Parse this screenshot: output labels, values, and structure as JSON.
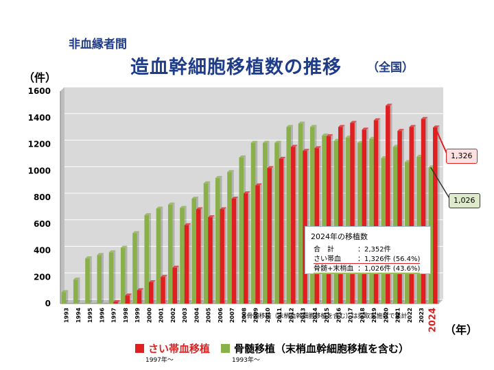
{
  "title": {
    "line1": "非血縁者間",
    "line2": "造血幹細胞移植数の推移",
    "line2_sub": "（全国）"
  },
  "units": {
    "y": "（件）",
    "x": "（年）"
  },
  "colors": {
    "red": "#e02020",
    "green": "#8ab04a",
    "plot_bg": "#d9d9d9"
  },
  "chart_data": {
    "type": "bar",
    "categories": [
      "1993",
      "1994",
      "1995",
      "1996",
      "1997",
      "1998",
      "1999",
      "2000",
      "2001",
      "2002",
      "2003",
      "2004",
      "2005",
      "2006",
      "2007",
      "2008",
      "2009",
      "2010",
      "2011",
      "2012",
      "2013",
      "2014",
      "2015",
      "2016",
      "2017",
      "2018",
      "2019",
      "2020",
      "2021",
      "2022",
      "2023",
      "2024"
    ],
    "series": [
      {
        "name": "さい帯血移植",
        "values": [
          0,
          0,
          0,
          0,
          10,
          60,
          100,
          160,
          200,
          270,
          590,
          710,
          650,
          710,
          790,
          830,
          890,
          1020,
          1090,
          1180,
          1150,
          1170,
          1260,
          1330,
          1360,
          1310,
          1380,
          1490,
          1300,
          1330,
          1390,
          1326
        ]
      },
      {
        "name": "骨髄移植（末梢血幹細胞移植を含む）",
        "values": [
          85,
          180,
          340,
          365,
          385,
          420,
          530,
          665,
          715,
          745,
          720,
          790,
          905,
          945,
          990,
          1100,
          1210,
          1210,
          1210,
          1330,
          1355,
          1330,
          1265,
          1225,
          1250,
          1210,
          1240,
          1095,
          1180,
          1065,
          1105,
          1026
        ]
      }
    ],
    "ylim": [
      0,
      1600
    ],
    "yticks": [
      "0",
      "200",
      "400",
      "600",
      "800",
      "1000",
      "1200",
      "1400",
      "1600"
    ],
    "grid": true,
    "legend_position": "bottom"
  },
  "legend": {
    "red_label": "さい帯血移植",
    "red_since": "1997年～",
    "green_label": "骨髄移植（末梢血幹細胞移植を含む）",
    "green_since": "1993年～"
  },
  "note": "※骨髄移植（末梢血幹細胞移植を含む）は採取実施数で集計",
  "summary": {
    "title": "2024年の移植数",
    "rows": [
      {
        "k": "合　計",
        "v": "：2,352件"
      },
      {
        "k": "さい帯血",
        "v": "：1,326件 (56.4%)"
      },
      {
        "k": "骨髄+末梢血",
        "v": "：1,026件 (43.6%)"
      }
    ]
  },
  "callouts": {
    "red": "1,326",
    "green": "1,026"
  }
}
